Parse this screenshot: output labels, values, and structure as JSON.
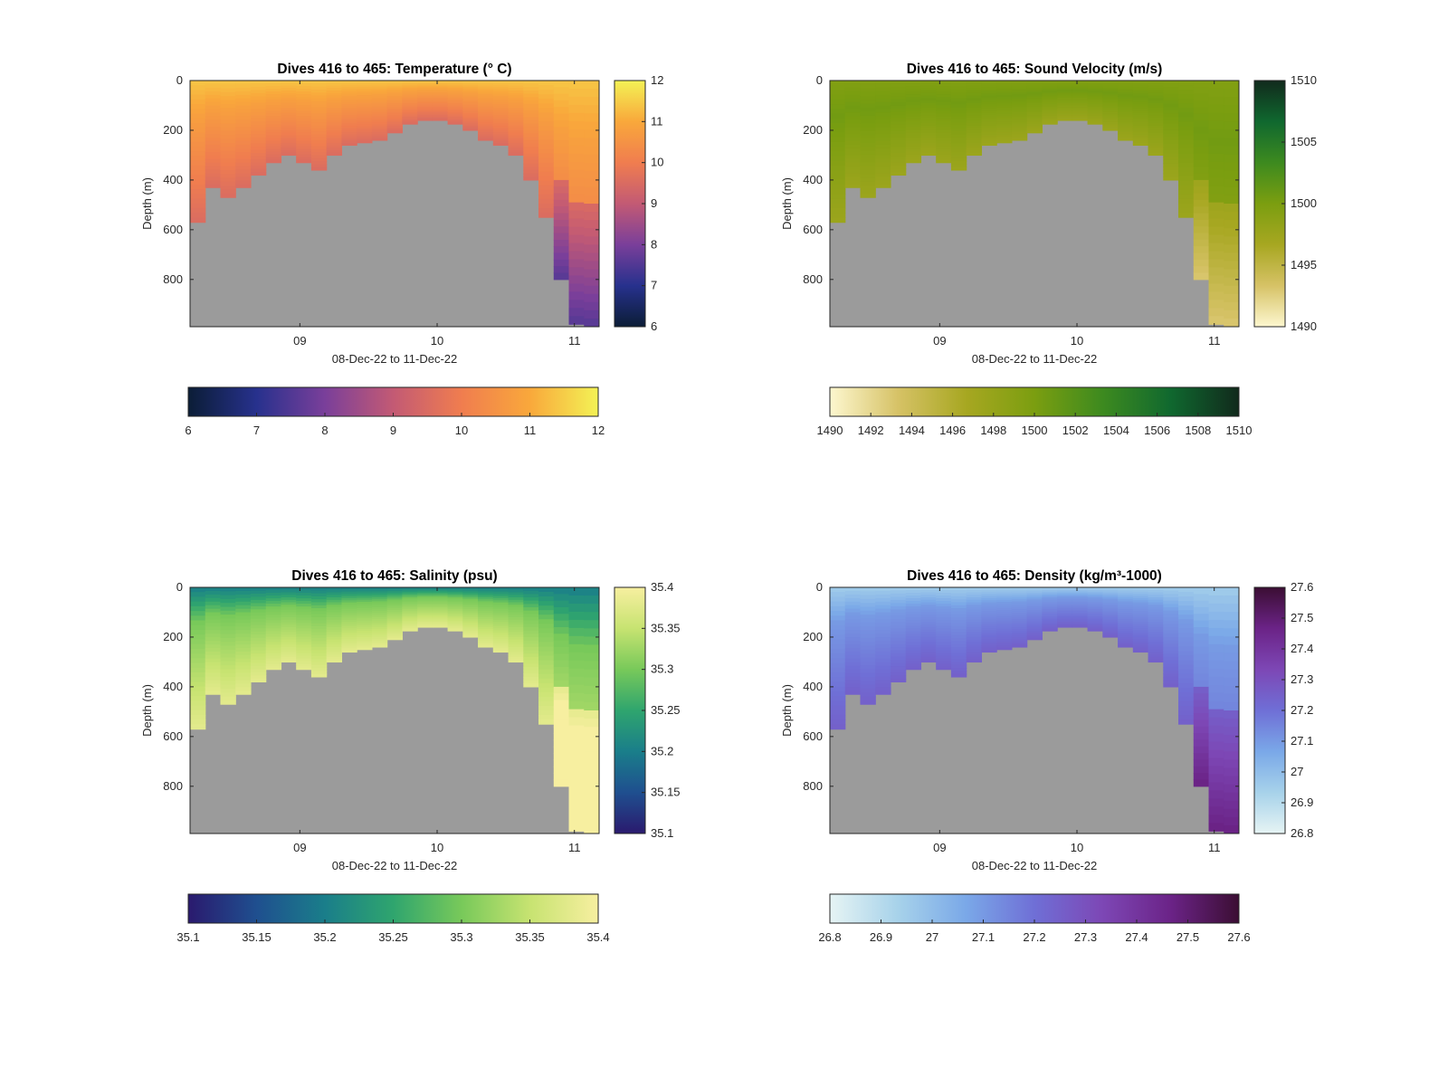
{
  "figure": {
    "background": "#ffffff",
    "bathymetry_color": "#9b9b9b"
  },
  "chart_data": [
    {
      "type": "heatmap",
      "variable": "temperature",
      "title": "Dives 416 to 465: Temperature (° C)",
      "xlabel": "08-Dec-22 to 11-Dec-22",
      "ylabel": "Depth (m)",
      "x_ticks": [
        "09",
        "10",
        "11"
      ],
      "x_tick_values": [
        9,
        10,
        11
      ],
      "xlim": [
        8.2,
        11.18
      ],
      "y_ticks": [
        "0",
        "200",
        "400",
        "600",
        "800"
      ],
      "ylim": [
        0,
        990
      ],
      "y_reversed": true,
      "colormap": [
        "#0b1d36",
        "#27318d",
        "#7a3f9a",
        "#c35a74",
        "#f07d4f",
        "#f9a83b",
        "#f3f255"
      ],
      "clim": [
        6,
        12
      ],
      "colorbar_ticks": [
        "6",
        "7",
        "8",
        "9",
        "10",
        "11",
        "12"
      ],
      "x_dives_start": 8.2,
      "x_dives_end": 11.18,
      "bottom_depth_profile_m": [
        570,
        430,
        470,
        430,
        380,
        330,
        300,
        330,
        360,
        300,
        260,
        250,
        240,
        210,
        175,
        160,
        160,
        175,
        200,
        240,
        260,
        300,
        400,
        550,
        800,
        980,
        990
      ],
      "layer_values": {
        "surface": 11.4,
        "mid": 10.8,
        "deep": 9.5
      }
    },
    {
      "type": "heatmap",
      "variable": "sound_velocity",
      "title": "Dives 416 to 465: Sound Velocity (m/s)",
      "xlabel": "08-Dec-22 to 11-Dec-22",
      "ylabel": "Depth (m)",
      "x_ticks": [
        "09",
        "10",
        "11"
      ],
      "x_tick_values": [
        9,
        10,
        11
      ],
      "xlim": [
        8.2,
        11.18
      ],
      "y_ticks": [
        "0",
        "200",
        "400",
        "600",
        "800"
      ],
      "ylim": [
        0,
        990
      ],
      "y_reversed": true,
      "colormap": [
        "#fdf7cf",
        "#d6c266",
        "#a7a721",
        "#7b9e10",
        "#3d8a1f",
        "#10682f",
        "#112a1c"
      ],
      "clim": [
        1490,
        1510
      ],
      "colorbar_ticks": [
        "1490",
        "1495",
        "1500",
        "1505",
        "1510"
      ],
      "h_colorbar_ticks": [
        "1490",
        "1492",
        "1494",
        "1496",
        "1498",
        "1500",
        "1502",
        "1504",
        "1506",
        "1508",
        "1510"
      ],
      "bottom_depth_profile_m": [
        570,
        430,
        470,
        430,
        380,
        330,
        300,
        330,
        360,
        300,
        260,
        250,
        240,
        210,
        175,
        160,
        160,
        175,
        200,
        240,
        260,
        300,
        400,
        550,
        800,
        980,
        990
      ],
      "layer_values": {
        "surface": 1499.5,
        "mid": 1500.5,
        "deep": 1497.5
      }
    },
    {
      "type": "heatmap",
      "variable": "salinity",
      "title": "Dives 416 to 465: Salinity (psu)",
      "xlabel": "08-Dec-22 to 11-Dec-22",
      "ylabel": "Depth (m)",
      "x_ticks": [
        "09",
        "10",
        "11"
      ],
      "x_tick_values": [
        9,
        10,
        11
      ],
      "xlim": [
        8.2,
        11.18
      ],
      "y_ticks": [
        "0",
        "200",
        "400",
        "600",
        "800"
      ],
      "ylim": [
        0,
        990
      ],
      "y_reversed": true,
      "colormap": [
        "#2a1a6e",
        "#1f4f8f",
        "#1a7e8a",
        "#2fa56e",
        "#78c95a",
        "#c7e371",
        "#f7efa0"
      ],
      "clim": [
        35.1,
        35.4
      ],
      "colorbar_ticks": [
        "35.1",
        "35.15",
        "35.2",
        "35.25",
        "35.3",
        "35.35",
        "35.4"
      ],
      "bottom_depth_profile_m": [
        570,
        430,
        470,
        430,
        380,
        330,
        300,
        330,
        360,
        300,
        260,
        250,
        240,
        210,
        175,
        160,
        160,
        175,
        200,
        240,
        260,
        300,
        400,
        550,
        800,
        980,
        990
      ],
      "layer_values": {
        "surface": 35.2,
        "mid": 35.3,
        "deep": 35.38
      }
    },
    {
      "type": "heatmap",
      "variable": "density",
      "title": "Dives 416 to 465: Density (kg/m³-1000)",
      "xlabel": "08-Dec-22 to 11-Dec-22",
      "ylabel": "Depth (m)",
      "x_ticks": [
        "09",
        "10",
        "11"
      ],
      "x_tick_values": [
        9,
        10,
        11
      ],
      "xlim": [
        8.2,
        11.18
      ],
      "y_ticks": [
        "0",
        "200",
        "400",
        "600",
        "800"
      ],
      "ylim": [
        0,
        990
      ],
      "y_reversed": true,
      "colormap": [
        "#e6f4f4",
        "#a7d2ea",
        "#7aa8e8",
        "#6f6fd6",
        "#7d47b5",
        "#6b2387",
        "#3b0e33"
      ],
      "clim": [
        26.8,
        27.6
      ],
      "colorbar_ticks": [
        "26.8",
        "26.9",
        "27",
        "27.1",
        "27.2",
        "27.3",
        "27.4",
        "27.5",
        "27.6"
      ],
      "bottom_depth_profile_m": [
        570,
        430,
        470,
        430,
        380,
        330,
        300,
        330,
        360,
        300,
        260,
        250,
        240,
        210,
        175,
        160,
        160,
        175,
        200,
        240,
        260,
        300,
        400,
        550,
        800,
        980,
        990
      ],
      "layer_values": {
        "surface": 26.95,
        "mid": 27.1,
        "deep": 27.25
      }
    }
  ]
}
